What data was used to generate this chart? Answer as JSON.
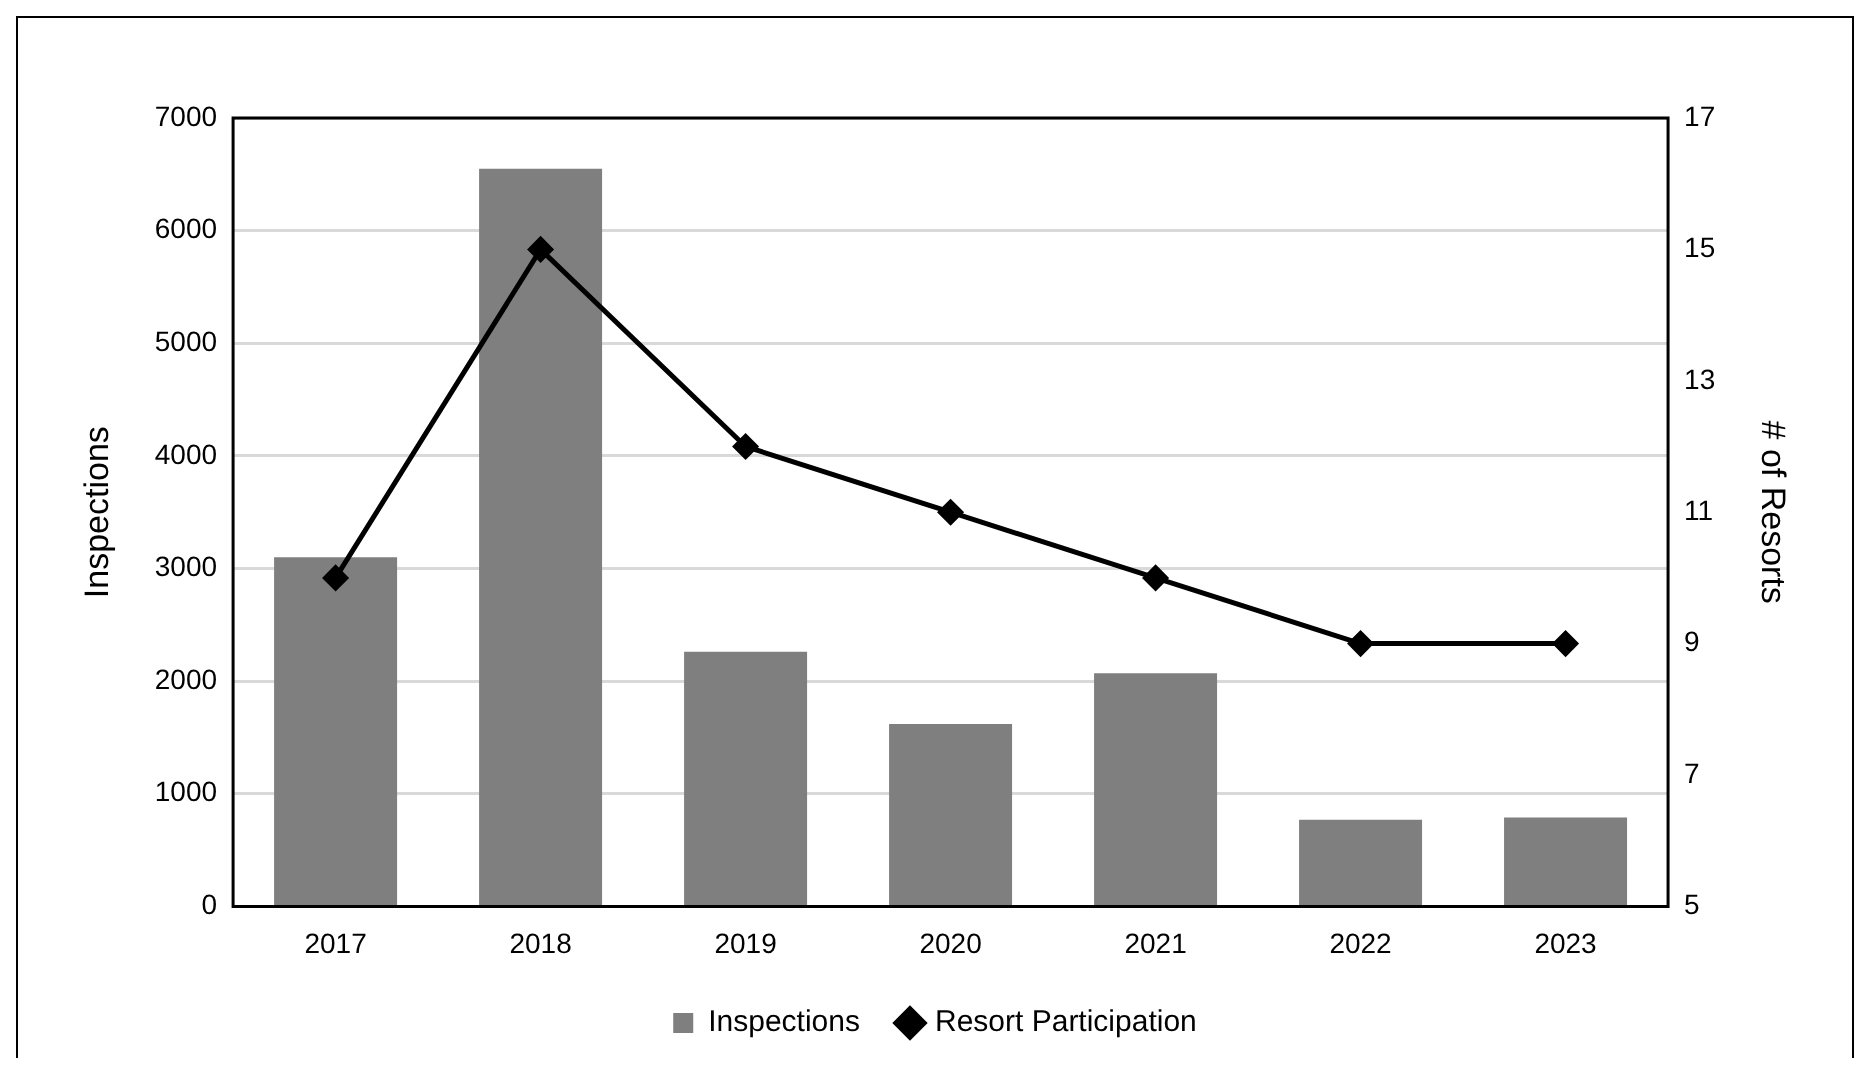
{
  "chart_data": {
    "type": "bar",
    "xlabel": null,
    "ylabel": "Inspections",
    "y2label": "# of Resorts",
    "categories": [
      "2017",
      "2018",
      "2019",
      "2020",
      "2021",
      "2022",
      "2023"
    ],
    "series": [
      {
        "name": "Inspections",
        "color": "#7f7f7f",
        "values": [
          3100,
          6550,
          2260,
          1620,
          2070,
          770,
          790
        ]
      },
      {
        "name": "Resort Participation",
        "type": "line",
        "axis": "y2",
        "color": "#000000",
        "marker": "diamond",
        "values": [
          10,
          15,
          12,
          11,
          10,
          9,
          9
        ]
      }
    ],
    "ylim": [
      0,
      7000
    ],
    "yticks": [
      0,
      1000,
      2000,
      3000,
      4000,
      5000,
      6000,
      7000
    ],
    "y2lim": [
      5,
      17
    ],
    "y2ticks": [
      5,
      7,
      9,
      11,
      13,
      15,
      17
    ],
    "grid": "y",
    "legend": "bottom"
  }
}
